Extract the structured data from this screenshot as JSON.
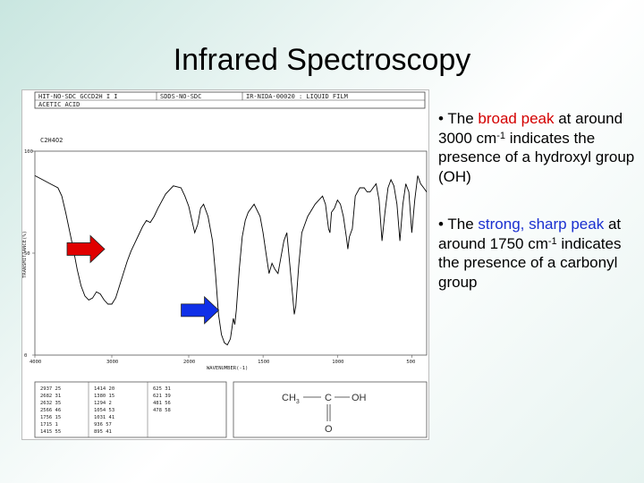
{
  "slide": {
    "title": "Infrared Spectroscopy"
  },
  "spectrum_header": {
    "row1_left": "HIT-NO-SDC  GCCD2H  I   I",
    "row1_mid": "SDDS-NO-SDC",
    "row1_right": "IR-NIDA-00020 : LIQUID FILM",
    "compound": "ACETIC ACID",
    "formula": "C2H4O2"
  },
  "chart_data": {
    "type": "line",
    "title": "",
    "xlabel": "WAVENUMBER(-1)",
    "ylabel": "TRANSMITTANCE(%)",
    "xlim": [
      4000,
      400
    ],
    "ylim": [
      0,
      100
    ],
    "x_ticks": [
      "4000",
      "3000",
      "2000",
      "1500",
      "1000",
      "500"
    ],
    "y_ticks": [
      "100",
      "50",
      "0"
    ],
    "grid": false,
    "series": [
      {
        "name": "",
        "x": [
          4000,
          3900,
          3800,
          3700,
          3650,
          3600,
          3500,
          3450,
          3400,
          3350,
          3300,
          3250,
          3200,
          3150,
          3100,
          3050,
          3000,
          2950,
          2900,
          2850,
          2800,
          2750,
          2700,
          2650,
          2600,
          2550,
          2500,
          2450,
          2400,
          2300,
          2200,
          2100,
          2050,
          2000,
          1960,
          1940,
          1920,
          1900,
          1870,
          1840,
          1820,
          1800,
          1780,
          1760,
          1740,
          1720,
          1700,
          1690,
          1680,
          1660,
          1640,
          1620,
          1600,
          1560,
          1520,
          1500,
          1480,
          1460,
          1440,
          1420,
          1400,
          1380,
          1360,
          1340,
          1320,
          1300,
          1290,
          1280,
          1260,
          1240,
          1200,
          1150,
          1100,
          1080,
          1060,
          1050,
          1040,
          1020,
          1000,
          980,
          960,
          940,
          930,
          920,
          900,
          880,
          850,
          820,
          800,
          780,
          760,
          740,
          720,
          700,
          680,
          660,
          640,
          620,
          600,
          580,
          560,
          540,
          520,
          500,
          480,
          460,
          440,
          420,
          400
        ],
        "y": [
          88,
          86,
          84,
          82,
          78,
          70,
          52,
          42,
          34,
          29,
          27,
          28,
          31,
          30,
          27,
          25,
          25,
          28,
          34,
          40,
          46,
          51,
          55,
          59,
          63,
          66,
          65,
          68,
          72,
          79,
          83,
          82,
          78,
          73,
          60,
          64,
          72,
          74,
          68,
          56,
          40,
          20,
          10,
          6,
          5,
          8,
          18,
          15,
          22,
          42,
          58,
          66,
          70,
          74,
          68,
          60,
          50,
          40,
          45,
          42,
          40,
          48,
          56,
          60,
          44,
          28,
          20,
          24,
          44,
          60,
          68,
          74,
          78,
          74,
          62,
          60,
          70,
          72,
          76,
          74,
          68,
          58,
          52,
          58,
          62,
          78,
          82,
          82,
          80,
          80,
          82,
          84,
          76,
          56,
          70,
          82,
          86,
          83,
          74,
          56,
          74,
          84,
          80,
          60,
          76,
          88,
          84,
          82,
          80
        ]
      }
    ]
  },
  "peak_table": {
    "col1": [
      "2937 25",
      "2682 31",
      "2632 35",
      "2566 46",
      "1756 15",
      "1715 1",
      "1415 55"
    ],
    "col2": [
      "1414 20",
      "1380 15",
      "1294 2",
      "1054 53",
      "1031 41",
      "936 57",
      "895 41"
    ],
    "col3": [
      "625 31",
      "621 39",
      "481 56",
      "478 58"
    ]
  },
  "structure": {
    "ch3": "CH",
    "ch3_sub": "3",
    "c": "C",
    "oh": "OH",
    "o": "O"
  },
  "bullets": [
    {
      "pre": "The ",
      "highlight": "broad peak",
      "post": " at around 3000 cm",
      "sup": "-1",
      "tail": " indicates the presence of a hydroxyl group (OH)",
      "highlight_color": "#d40000"
    },
    {
      "pre": "The ",
      "highlight": "strong, sharp peak",
      "post": " at around 1750 cm",
      "sup": "-1",
      "tail": " indicates the presence of a carbonyl group",
      "highlight_color": "#1a2fd0"
    }
  ],
  "arrows": [
    {
      "color": "#e00000",
      "target_wavenumber": 3000
    },
    {
      "color": "#1030e8",
      "target_wavenumber": 1750
    }
  ]
}
